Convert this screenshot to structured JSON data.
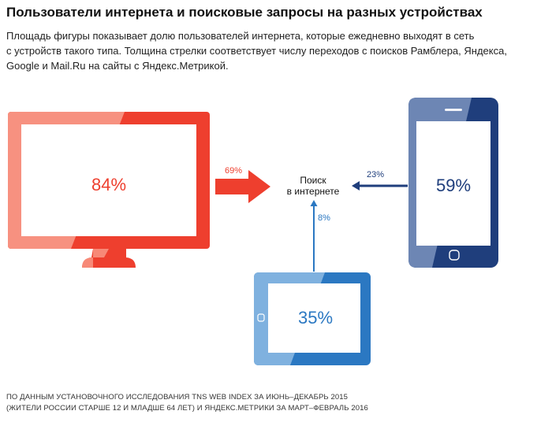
{
  "header": {
    "title": "Пользователи интернета и поисковые запросы на разных устройствах",
    "subtitle_lines": [
      "Площадь фигуры показывает долю пользователей интернета, которые ежедневно выходят в сеть",
      "с устройств такого типа. Толщина стрелки соответствует числу переходов с поисков Рамблера, Яндекса,",
      "Google и Mail.Ru на сайты с Яндекс.Метрикой."
    ]
  },
  "center": {
    "line1": "Поиск",
    "line2": "в интернете"
  },
  "devices": {
    "desktop": {
      "share": "84%",
      "arrow_share": "69%"
    },
    "phone": {
      "share": "59%",
      "arrow_share": "23%"
    },
    "tablet": {
      "share": "35%",
      "arrow_share": "8%"
    }
  },
  "colors": {
    "desktop_main": "#ee3f2e",
    "desktop_light": "#f79180",
    "phone_main": "#1f3e7c",
    "phone_light": "#6d86b4",
    "tablet_main": "#2b78c2",
    "tablet_light": "#7fb1df"
  },
  "footer": {
    "line1": "ПО ДАННЫМ УСТАНОВОЧНОГО ИССЛЕДОВАНИЯ TNS WEB INDEX ЗА ИЮНЬ–ДЕКАБРЬ 2015",
    "line2": "(ЖИТЕЛИ РОССИИ СТАРШЕ 12 И МЛАДШЕ 64 ЛЕТ) И ЯНДЕКС.МЕТРИКИ ЗА МАРТ–ФЕВРАЛЬ 2016"
  }
}
